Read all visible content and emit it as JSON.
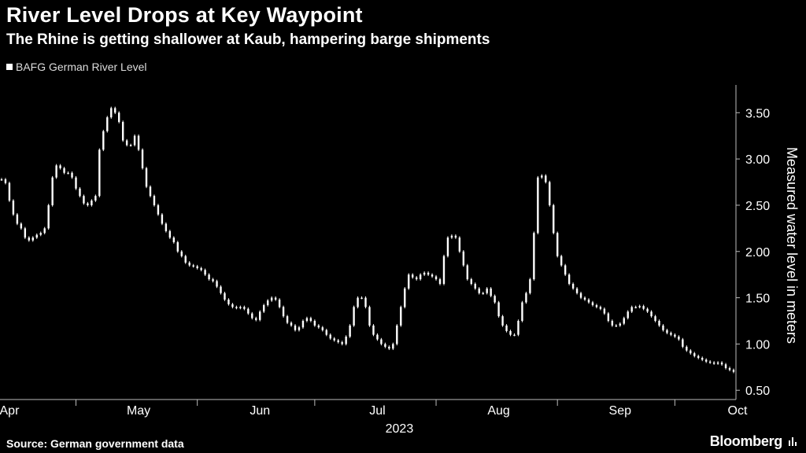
{
  "header": {
    "title": "River Level Drops at Key Waypoint",
    "subtitle": "The Rhine is getting shallower at Kaub, hampering barge shipments"
  },
  "legend": {
    "label": "BAFG German River Level"
  },
  "footer": {
    "source": "Source: German government data",
    "brand": "Bloomberg"
  },
  "colors": {
    "background": "#000000",
    "bars": "#ffffff",
    "axis": "#bbbbbb"
  },
  "chart_data": {
    "type": "candlestick",
    "title": "River Level Drops at Key Waypoint",
    "series_name": "BAFG German River Level",
    "ylabel": "Measured water level in meters",
    "xlabel": "2023",
    "ylim": [
      0.4,
      3.8
    ],
    "yticks": [
      0.5,
      1.0,
      1.5,
      2.0,
      2.5,
      3.0,
      3.5
    ],
    "ytick_labels": [
      "0.50",
      "1.00",
      "1.50",
      "2.00",
      "2.50",
      "3.00",
      "3.50"
    ],
    "x_start": "2023-03-28",
    "x_end": "2023-10-19",
    "month_labels": [
      {
        "label": "Apr",
        "center_day": 2
      },
      {
        "label": "May",
        "center_day": 35
      },
      {
        "label": "Jun",
        "center_day": 66
      },
      {
        "label": "Jul",
        "center_day": 96
      },
      {
        "label": "Aug",
        "center_day": 127
      },
      {
        "label": "Sep",
        "center_day": 158
      },
      {
        "label": "Oct",
        "center_day": 188
      }
    ],
    "month_tick_days": [
      19,
      50,
      80,
      111,
      142,
      172
    ],
    "year_label": "2023",
    "day_offset": 0,
    "values": [
      2.78,
      2.74,
      2.55,
      2.4,
      2.3,
      2.25,
      2.15,
      2.12,
      2.15,
      2.18,
      2.2,
      2.25,
      2.5,
      2.8,
      2.93,
      2.9,
      2.85,
      2.85,
      2.8,
      2.68,
      2.6,
      2.52,
      2.5,
      2.55,
      2.6,
      3.1,
      3.3,
      3.45,
      3.55,
      3.5,
      3.4,
      3.2,
      3.15,
      3.15,
      3.25,
      3.1,
      2.9,
      2.7,
      2.6,
      2.5,
      2.4,
      2.3,
      2.22,
      2.15,
      2.1,
      2.0,
      1.95,
      1.88,
      1.85,
      1.84,
      1.82,
      1.8,
      1.75,
      1.7,
      1.68,
      1.62,
      1.55,
      1.48,
      1.43,
      1.4,
      1.39,
      1.4,
      1.38,
      1.33,
      1.28,
      1.26,
      1.35,
      1.42,
      1.47,
      1.5,
      1.48,
      1.4,
      1.3,
      1.23,
      1.2,
      1.15,
      1.18,
      1.25,
      1.28,
      1.25,
      1.2,
      1.18,
      1.15,
      1.1,
      1.06,
      1.04,
      1.02,
      1.0,
      1.08,
      1.2,
      1.4,
      1.5,
      1.5,
      1.4,
      1.2,
      1.1,
      1.05,
      1.0,
      0.97,
      0.95,
      1.0,
      1.2,
      1.4,
      1.6,
      1.75,
      1.72,
      1.7,
      1.75,
      1.77,
      1.75,
      1.73,
      1.7,
      1.65,
      1.95,
      2.15,
      2.17,
      2.15,
      2.0,
      1.85,
      1.7,
      1.65,
      1.6,
      1.55,
      1.55,
      1.6,
      1.52,
      1.45,
      1.3,
      1.2,
      1.14,
      1.1,
      1.1,
      1.25,
      1.45,
      1.55,
      1.7,
      2.2,
      2.8,
      2.82,
      2.75,
      2.5,
      2.2,
      1.95,
      1.85,
      1.75,
      1.65,
      1.6,
      1.55,
      1.5,
      1.48,
      1.45,
      1.42,
      1.4,
      1.38,
      1.33,
      1.25,
      1.2,
      1.2,
      1.22,
      1.28,
      1.35,
      1.4,
      1.4,
      1.41,
      1.38,
      1.35,
      1.3,
      1.25,
      1.2,
      1.15,
      1.12,
      1.1,
      1.08,
      1.05,
      0.97,
      0.93,
      0.9,
      0.87,
      0.85,
      0.83,
      0.81,
      0.8,
      0.79,
      0.8,
      0.78,
      0.74,
      0.72,
      0.7
    ]
  }
}
